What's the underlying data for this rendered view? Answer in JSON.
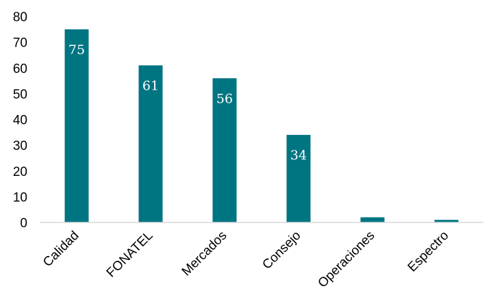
{
  "chart_data": {
    "type": "bar",
    "categories": [
      "Calidad",
      "FONATEL",
      "Mercados",
      "Consejo",
      "Operaciones",
      "Espectro"
    ],
    "values": [
      75,
      61,
      56,
      34,
      2,
      1
    ],
    "data_labels": [
      "75",
      "61",
      "56",
      "34",
      "",
      ""
    ],
    "title": "",
    "xlabel": "",
    "ylabel": "",
    "ylim": [
      0,
      80
    ],
    "yticks": [
      "0",
      "10",
      "20",
      "30",
      "40",
      "50",
      "60",
      "70",
      "80"
    ],
    "grid": false,
    "legend": "none",
    "bar_color": "#007582",
    "label_color": "#ffffff",
    "axis_color": "#d9d9d9"
  }
}
